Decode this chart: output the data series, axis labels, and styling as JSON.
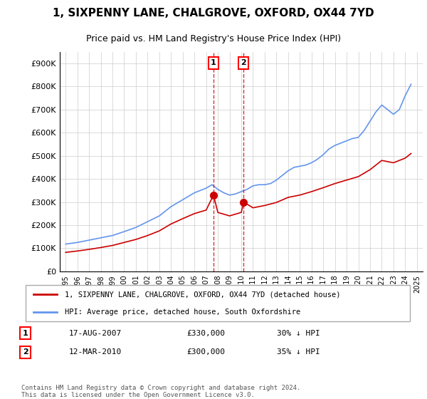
{
  "title": "1, SIXPENNY LANE, CHALGROVE, OXFORD, OX44 7YD",
  "subtitle": "Price paid vs. HM Land Registry's House Price Index (HPI)",
  "legend_line1": "1, SIXPENNY LANE, CHALGROVE, OXFORD, OX44 7YD (detached house)",
  "legend_line2": "HPI: Average price, detached house, South Oxfordshire",
  "transaction1_label": "1",
  "transaction1_date": "17-AUG-2007",
  "transaction1_price": "£330,000",
  "transaction1_hpi": "30% ↓ HPI",
  "transaction1_year": 2007.63,
  "transaction1_value": 330000,
  "transaction2_label": "2",
  "transaction2_date": "12-MAR-2010",
  "transaction2_price": "£300,000",
  "transaction2_hpi": "35% ↓ HPI",
  "transaction2_year": 2010.2,
  "transaction2_value": 300000,
  "ylim": [
    0,
    950000
  ],
  "yticks": [
    0,
    100000,
    200000,
    300000,
    400000,
    500000,
    600000,
    700000,
    800000,
    900000
  ],
  "ytick_labels": [
    "£0",
    "£100K",
    "£200K",
    "£300K",
    "£400K",
    "£500K",
    "£600K",
    "£700K",
    "£800K",
    "£900K"
  ],
  "hpi_color": "#6495ED",
  "price_color": "#CC0000",
  "background_color": "#ffffff",
  "grid_color": "#cccccc",
  "footer": "Contains HM Land Registry data © Crown copyright and database right 2024.\nThis data is licensed under the Open Government Licence v3.0.",
  "hpi_years": [
    1995,
    1996,
    1997,
    1998,
    1999,
    2000,
    2001,
    2002,
    2003,
    2004,
    2005,
    2006,
    2007,
    2007.5,
    2008,
    2008.5,
    2009,
    2009.5,
    2010,
    2010.5,
    2011,
    2011.5,
    2012,
    2012.5,
    2013,
    2013.5,
    2014,
    2014.5,
    2015,
    2015.5,
    2016,
    2016.5,
    2017,
    2017.5,
    2018,
    2018.5,
    2019,
    2019.5,
    2020,
    2020.5,
    2021,
    2021.5,
    2022,
    2022.5,
    2023,
    2023.5,
    2024,
    2024.5
  ],
  "hpi_values": [
    118000,
    125000,
    135000,
    145000,
    155000,
    172000,
    190000,
    215000,
    240000,
    280000,
    310000,
    340000,
    360000,
    375000,
    355000,
    340000,
    330000,
    335000,
    345000,
    355000,
    370000,
    375000,
    375000,
    380000,
    395000,
    415000,
    435000,
    450000,
    455000,
    460000,
    470000,
    485000,
    505000,
    530000,
    545000,
    555000,
    565000,
    575000,
    580000,
    610000,
    650000,
    690000,
    720000,
    700000,
    680000,
    700000,
    760000,
    810000
  ],
  "price_years": [
    1995,
    1996,
    1997,
    1998,
    1999,
    2000,
    2001,
    2002,
    2003,
    2004,
    2005,
    2006,
    2007,
    2007.63,
    2008,
    2009,
    2010,
    2010.2,
    2011,
    2012,
    2013,
    2014,
    2015,
    2016,
    2017,
    2018,
    2019,
    2020,
    2021,
    2022,
    2023,
    2024,
    2024.5
  ],
  "price_values": [
    82000,
    88000,
    95000,
    103000,
    112000,
    125000,
    138000,
    155000,
    175000,
    205000,
    228000,
    250000,
    265000,
    330000,
    255000,
    240000,
    255000,
    300000,
    275000,
    285000,
    298000,
    320000,
    330000,
    345000,
    362000,
    380000,
    395000,
    410000,
    440000,
    480000,
    470000,
    490000,
    510000
  ]
}
